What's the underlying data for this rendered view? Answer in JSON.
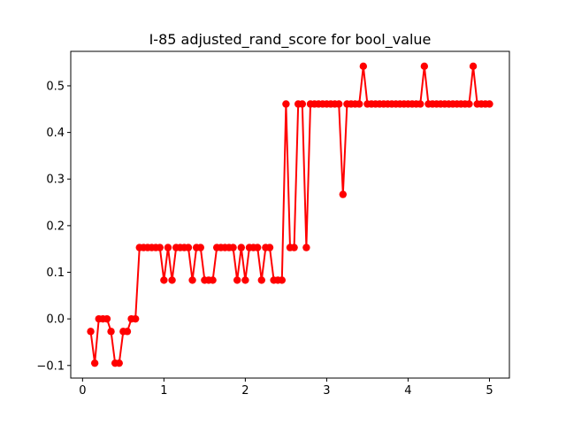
{
  "chart_data": {
    "type": "line",
    "title": "I-85 adjusted_rand_score for bool_value",
    "xlabel": "",
    "ylabel": "",
    "xlim": [
      -0.145,
      5.245
    ],
    "ylim": [
      -0.127,
      0.574
    ],
    "xticks": [
      0,
      1,
      2,
      3,
      4,
      5
    ],
    "xtick_labels": [
      "0",
      "1",
      "2",
      "3",
      "4",
      "5"
    ],
    "yticks": [
      -0.1,
      0.0,
      0.1,
      0.2,
      0.3,
      0.4,
      0.5
    ],
    "ytick_labels": [
      "−0.1",
      "0.0",
      "0.1",
      "0.2",
      "0.3",
      "0.4",
      "0.5"
    ],
    "grid": false,
    "legend": "none",
    "series": [
      {
        "color": "#ff0000",
        "marker": "circle",
        "x": [
          0.1,
          0.15,
          0.2,
          0.25,
          0.3,
          0.35,
          0.4,
          0.45,
          0.5,
          0.55,
          0.6,
          0.65,
          0.7,
          0.75,
          0.8,
          0.85,
          0.9,
          0.95,
          1.0,
          1.05,
          1.1,
          1.15,
          1.2,
          1.25,
          1.3,
          1.35,
          1.4,
          1.45,
          1.5,
          1.55,
          1.6,
          1.65,
          1.7,
          1.75,
          1.8,
          1.85,
          1.9,
          1.95,
          2.0,
          2.05,
          2.1,
          2.15,
          2.2,
          2.25,
          2.3,
          2.35,
          2.4,
          2.45,
          2.5,
          2.55,
          2.6,
          2.65,
          2.7,
          2.75,
          2.8,
          2.85,
          2.9,
          2.95,
          3.0,
          3.05,
          3.1,
          3.15,
          3.2,
          3.25,
          3.3,
          3.35,
          3.4,
          3.45,
          3.5,
          3.55,
          3.6,
          3.65,
          3.7,
          3.75,
          3.8,
          3.85,
          3.9,
          3.95,
          4.0,
          4.05,
          4.1,
          4.15,
          4.2,
          4.25,
          4.3,
          4.35,
          4.4,
          4.45,
          4.5,
          4.55,
          4.6,
          4.65,
          4.7,
          4.75,
          4.8,
          4.85,
          4.9,
          4.95,
          5.0
        ],
        "values": [
          -0.027,
          -0.095,
          0.0,
          0.0,
          0.0,
          -0.027,
          -0.095,
          -0.095,
          -0.027,
          -0.027,
          0.0,
          0.0,
          0.153,
          0.153,
          0.153,
          0.153,
          0.153,
          0.153,
          0.083,
          0.153,
          0.083,
          0.153,
          0.153,
          0.153,
          0.153,
          0.083,
          0.153,
          0.153,
          0.083,
          0.083,
          0.083,
          0.153,
          0.153,
          0.153,
          0.153,
          0.153,
          0.083,
          0.153,
          0.083,
          0.153,
          0.153,
          0.153,
          0.083,
          0.153,
          0.153,
          0.083,
          0.083,
          0.083,
          0.461,
          0.153,
          0.153,
          0.461,
          0.461,
          0.153,
          0.461,
          0.461,
          0.461,
          0.461,
          0.461,
          0.461,
          0.461,
          0.461,
          0.267,
          0.461,
          0.461,
          0.461,
          0.461,
          0.542,
          0.461,
          0.461,
          0.461,
          0.461,
          0.461,
          0.461,
          0.461,
          0.461,
          0.461,
          0.461,
          0.461,
          0.461,
          0.461,
          0.461,
          0.542,
          0.461,
          0.461,
          0.461,
          0.461,
          0.461,
          0.461,
          0.461,
          0.461,
          0.461,
          0.461,
          0.461,
          0.542,
          0.461,
          0.461,
          0.461,
          0.461
        ]
      }
    ]
  }
}
